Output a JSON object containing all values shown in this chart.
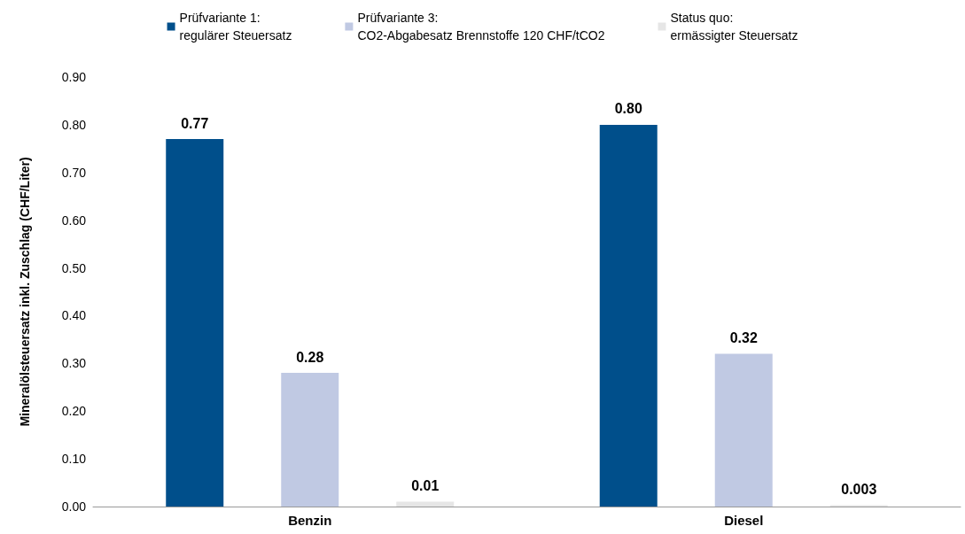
{
  "chart_data": {
    "type": "bar",
    "ylabel": "Mineralölsteuersatz inkl. Zuschlag (CHF/Liter)",
    "categories": [
      "Benzin",
      "Diesel"
    ],
    "series": [
      {
        "name": "Prüfvariante 1:\nregulärer Steuersatz",
        "color": "#004f8b",
        "values": [
          0.77,
          0.8
        ],
        "value_labels": [
          "0.77",
          "0.80"
        ]
      },
      {
        "name": "Prüfvariante 3:\nCO2-Abgabesatz Brennstoffe 120 CHF/tCO2",
        "color": "#c0c9e3",
        "values": [
          0.28,
          0.32
        ],
        "value_labels": [
          "0.28",
          "0.32"
        ]
      },
      {
        "name": "Status quo:\nermässigter Steuersatz",
        "color": "#e6e6e6",
        "values": [
          0.01,
          0.003
        ],
        "value_labels": [
          "0.01",
          "0.003"
        ]
      }
    ],
    "ylim": [
      0,
      0.9
    ],
    "yticks": [
      {
        "value": 0,
        "label": "0.00"
      },
      {
        "value": 0.1,
        "label": "0.10"
      },
      {
        "value": 0.2,
        "label": "0.20"
      },
      {
        "value": 0.3,
        "label": "0.30"
      },
      {
        "value": 0.4,
        "label": "0.40"
      },
      {
        "value": 0.5,
        "label": "0.50"
      },
      {
        "value": 0.6,
        "label": "0.60"
      },
      {
        "value": 0.7,
        "label": "0.70"
      },
      {
        "value": 0.8,
        "label": "0.80"
      },
      {
        "value": 0.9,
        "label": "0.90"
      }
    ],
    "grid": false,
    "legend": "top"
  }
}
